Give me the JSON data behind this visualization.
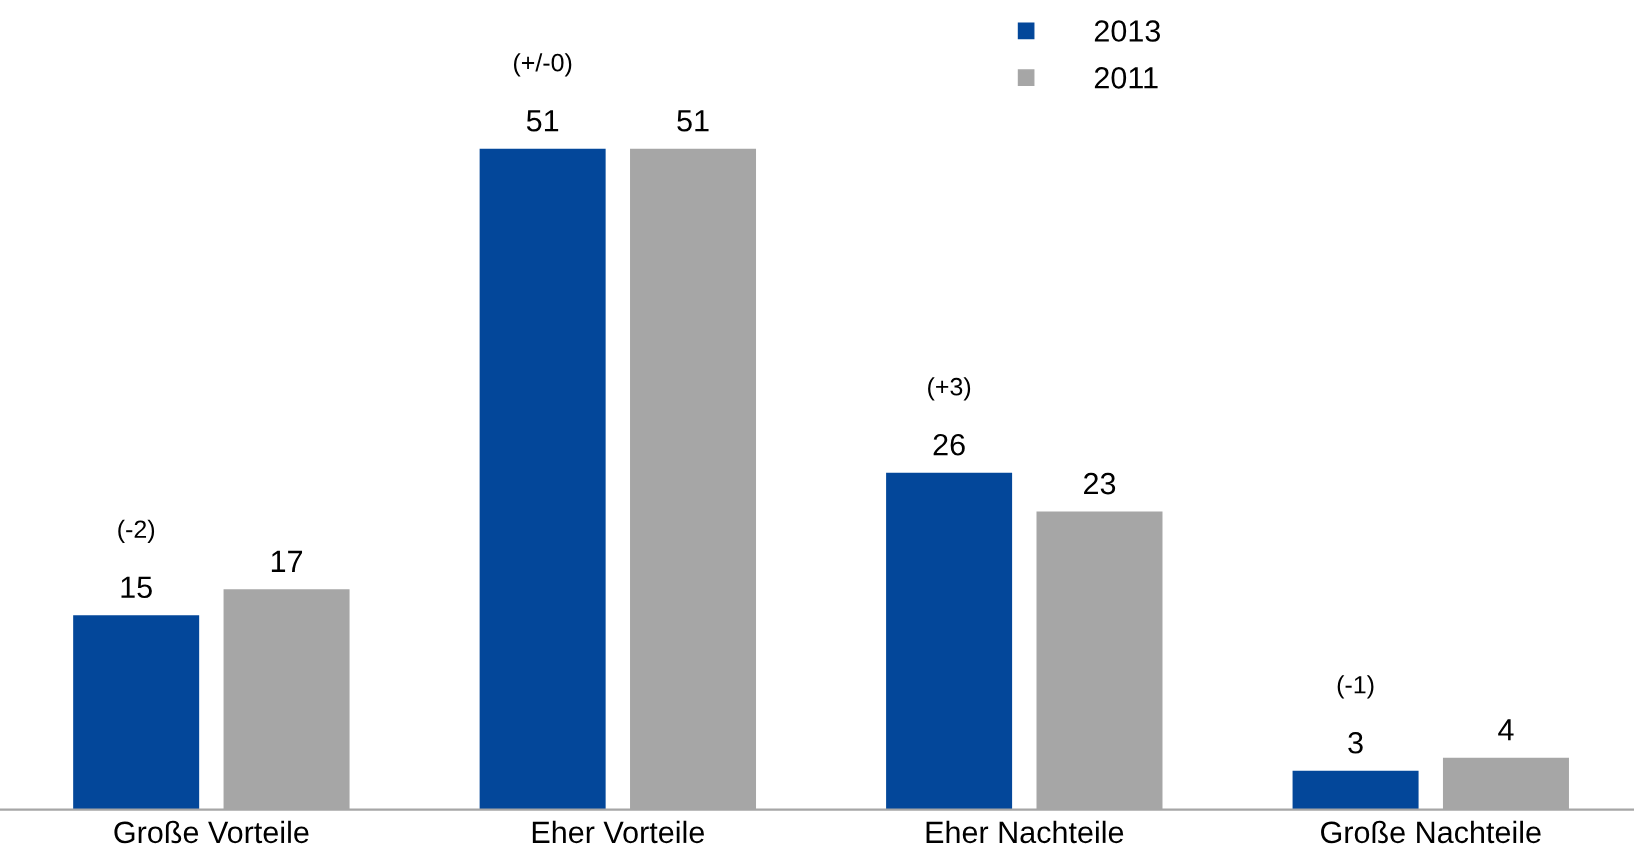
{
  "chart_data": {
    "type": "bar",
    "categories": [
      "Große Vorteile",
      "Eher Vorteile",
      "Eher Nachteile",
      "Große Nachteile"
    ],
    "series": [
      {
        "name": "2013",
        "color": "#03479a",
        "values": [
          15,
          51,
          26,
          3
        ]
      },
      {
        "name": "2011",
        "color": "#a6a6a6",
        "values": [
          17,
          51,
          23,
          4
        ]
      }
    ],
    "data_labels": true,
    "legend": "top",
    "grid": false,
    "annotations": [
      "(-2)",
      "(+/-0)",
      "(+3)",
      "(-1)"
    ]
  }
}
